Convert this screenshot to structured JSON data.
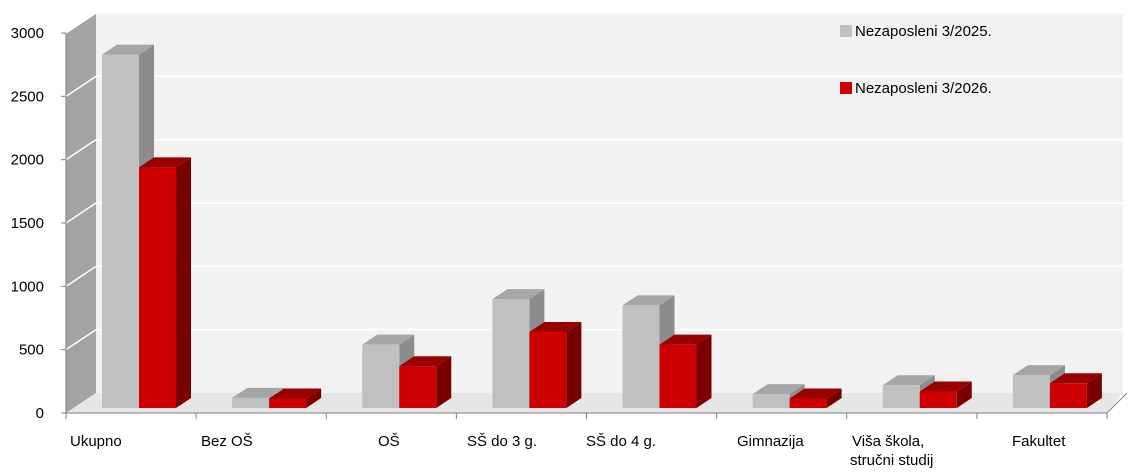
{
  "chart_data": {
    "type": "bar",
    "categories": [
      [
        "Ukupno"
      ],
      [
        "Bez OŠ"
      ],
      [
        "OŠ"
      ],
      [
        "SŠ do 3 g."
      ],
      [
        "SŠ do 4 g."
      ],
      [
        "Gimnazija"
      ],
      [
        "Viša škola,",
        "stručni studij"
      ],
      [
        "Fakultet"
      ]
    ],
    "series": [
      {
        "name": "Nezaposleni 3/2025.",
        "values": [
          2790,
          80,
          500,
          860,
          810,
          110,
          180,
          260
        ],
        "color": "#c0c0c0",
        "side_color": "#8c8c8c",
        "top_color": "#a6a6a6"
      },
      {
        "name": "Nezaposleni 3/2026.",
        "values": [
          1900,
          75,
          330,
          600,
          500,
          75,
          130,
          195
        ],
        "color": "#cc0000",
        "side_color": "#7a0000",
        "top_color": "#990000"
      }
    ],
    "yticks": [
      0,
      500,
      1000,
      1500,
      2000,
      2500,
      3000
    ],
    "ylim": [
      0,
      3000
    ],
    "grid": true,
    "legend_position": "top-right",
    "title": "",
    "xlabel": "",
    "ylabel": ""
  }
}
